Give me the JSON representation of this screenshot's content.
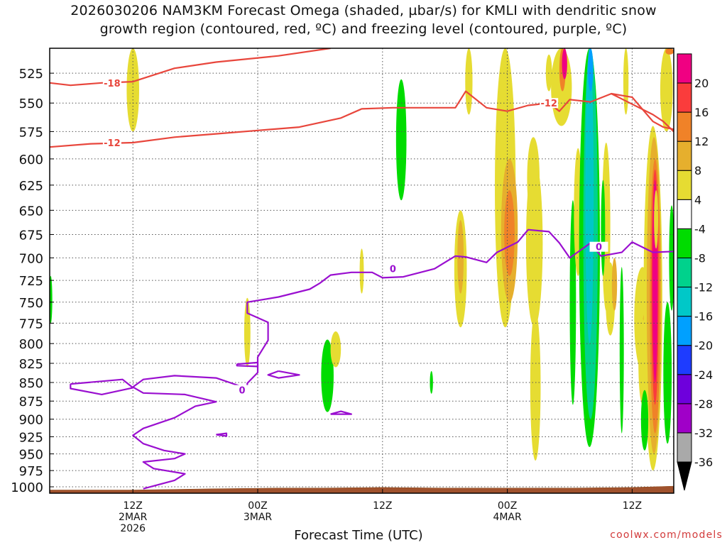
{
  "chart_data": {
    "type": "heatmap",
    "title_line1": "2026030206 NAM3KM Forecast Omega (shaded, µbar/s) for KMLI with dendritic snow",
    "title_line2": "growth region (contoured, red, ºC) and freezing level (contoured, purple, ºC)",
    "xlabel": "Forecast Time (UTC)",
    "credit": "coolwx.com/models",
    "y_axis": {
      "unit": "hPa",
      "reversed": true,
      "ylim": [
        1010,
        505
      ],
      "ticks": [
        525,
        550,
        575,
        600,
        625,
        650,
        675,
        700,
        725,
        750,
        775,
        800,
        825,
        850,
        875,
        900,
        925,
        950,
        975,
        1000
      ]
    },
    "x_axis": {
      "xlim_hours": [
        -2,
        58
      ],
      "ticks": [
        {
          "hour": 6,
          "line1": "12Z",
          "line2": "2MAR",
          "line3": "2026"
        },
        {
          "hour": 18,
          "line1": "00Z",
          "line2": "3MAR",
          "line3": ""
        },
        {
          "hour": 30,
          "line1": "12Z",
          "line2": "",
          "line3": ""
        },
        {
          "hour": 42,
          "line1": "00Z",
          "line2": "4MAR",
          "line3": ""
        },
        {
          "hour": 54,
          "line1": "12Z",
          "line2": "",
          "line3": ""
        }
      ]
    },
    "grid": true,
    "colorbar": {
      "levels": [
        -36,
        -32,
        -28,
        -24,
        -20,
        -16,
        -12,
        -8,
        -4,
        4,
        8,
        12,
        16,
        20
      ],
      "labels": [
        "20",
        "16",
        "12",
        "8",
        "4",
        "-4",
        "-8",
        "-12",
        "-16",
        "-20",
        "-24",
        "-28",
        "-32",
        "-36"
      ],
      "colors": [
        "#a9a9a9",
        "#a000c8",
        "#6e00dc",
        "#1e3cff",
        "#00a0ff",
        "#00c8c8",
        "#00d28c",
        "#00dc00",
        "#ffffff",
        "#e6dc32",
        "#e6af2d",
        "#f08228",
        "#fa3c3c",
        "#f00082"
      ],
      "extend_low": "#000000",
      "extend_high": "#f00082"
    },
    "contour_labels": {
      "dgz_upper": "-18",
      "dgz_lower": "-12",
      "dgz_lower_right": "-12",
      "freeze": "0",
      "freeze_left": "0",
      "freeze_right": "0"
    },
    "dgz_upper_18": [
      [
        -2,
        533
      ],
      [
        0,
        535
      ],
      [
        3,
        533
      ],
      [
        6,
        532
      ],
      [
        10,
        521
      ],
      [
        14,
        516
      ],
      [
        20,
        511
      ],
      [
        25,
        505
      ]
    ],
    "dgz_lower_12": [
      [
        -2,
        589
      ],
      [
        2,
        586
      ],
      [
        6,
        585
      ],
      [
        10,
        580
      ],
      [
        14,
        577
      ],
      [
        18,
        574
      ],
      [
        22,
        571
      ],
      [
        26,
        563
      ],
      [
        28,
        555
      ],
      [
        31,
        554
      ],
      [
        35,
        554
      ],
      [
        37,
        554
      ],
      [
        38,
        540
      ],
      [
        40,
        554
      ],
      [
        42,
        557
      ],
      [
        44,
        552
      ],
      [
        46,
        550
      ],
      [
        47,
        557
      ],
      [
        48,
        547
      ],
      [
        50,
        549
      ],
      [
        52,
        542
      ],
      [
        54,
        545
      ],
      [
        56,
        566
      ],
      [
        57,
        571
      ],
      [
        58,
        573
      ]
    ],
    "dgz_upper_right_12": [
      [
        52,
        542
      ],
      [
        56,
        560
      ],
      [
        57,
        566
      ],
      [
        58,
        575
      ]
    ],
    "freeze_main": [
      [
        7,
        1003
      ],
      [
        10,
        990
      ],
      [
        11,
        980
      ],
      [
        8,
        972
      ],
      [
        7,
        962
      ],
      [
        10,
        957
      ],
      [
        11,
        950
      ],
      [
        9,
        945
      ],
      [
        7,
        935
      ],
      [
        6,
        923
      ],
      [
        7,
        913
      ],
      [
        10,
        898
      ],
      [
        12,
        882
      ],
      [
        14,
        876
      ],
      [
        11,
        866
      ],
      [
        7,
        864
      ],
      [
        6,
        856
      ],
      [
        7,
        846
      ],
      [
        10,
        841
      ],
      [
        14,
        844
      ],
      [
        17,
        858
      ],
      [
        17,
        851
      ],
      [
        18,
        837
      ],
      [
        18,
        817
      ],
      [
        19,
        796
      ],
      [
        19,
        774
      ],
      [
        17,
        763
      ],
      [
        17,
        750
      ],
      [
        20,
        744
      ],
      [
        23,
        735
      ],
      [
        24,
        728
      ],
      [
        25,
        719
      ],
      [
        27,
        716
      ],
      [
        29,
        716
      ],
      [
        30,
        722
      ],
      [
        32,
        721
      ],
      [
        35,
        712
      ],
      [
        37,
        698
      ],
      [
        38,
        699
      ],
      [
        40,
        705
      ],
      [
        41,
        694
      ],
      [
        43,
        683
      ],
      [
        44,
        670
      ],
      [
        46,
        672
      ],
      [
        47,
        684
      ],
      [
        48,
        700
      ],
      [
        50,
        684
      ],
      [
        51,
        698
      ],
      [
        53,
        694
      ],
      [
        54,
        683
      ],
      [
        56,
        694
      ],
      [
        58,
        693
      ]
    ],
    "freeze_blob1": [
      [
        0,
        852
      ],
      [
        5,
        846
      ],
      [
        6,
        857
      ],
      [
        3,
        866
      ],
      [
        0,
        858
      ],
      [
        0,
        852
      ]
    ],
    "freeze_blob2": [
      [
        16,
        826
      ],
      [
        18,
        824
      ],
      [
        18,
        829
      ],
      [
        16,
        828
      ],
      [
        16,
        826
      ]
    ],
    "freeze_blob3": [
      [
        14,
        922
      ],
      [
        15,
        920
      ],
      [
        15,
        924
      ],
      [
        14,
        922
      ]
    ],
    "freeze_blob4": [
      [
        20,
        835
      ],
      [
        22,
        840
      ],
      [
        20,
        844
      ],
      [
        19,
        840
      ],
      [
        20,
        835
      ]
    ],
    "freeze_blob5": [
      [
        25,
        893
      ],
      [
        26,
        889
      ],
      [
        27,
        893
      ],
      [
        25,
        893
      ]
    ],
    "omega_blobs": [
      {
        "t": 6,
        "hw": 0.6,
        "p1": 505,
        "p2": 575,
        "v": 6
      },
      {
        "t": 17,
        "hw": 0.3,
        "p1": 745,
        "p2": 830,
        "v": 6
      },
      {
        "t": 24.7,
        "hw": 0.6,
        "p1": 795,
        "p2": 890,
        "v": -6
      },
      {
        "t": 25.5,
        "hw": 0.5,
        "p1": 785,
        "p2": 830,
        "v": 6
      },
      {
        "t": 28,
        "hw": 0.2,
        "p1": 690,
        "p2": 740,
        "v": 6
      },
      {
        "t": 31.8,
        "hw": 0.5,
        "p1": 530,
        "p2": 640,
        "v": -6
      },
      {
        "t": 34.7,
        "hw": 0.15,
        "p1": 835,
        "p2": 865,
        "v": -6
      },
      {
        "t": 37.5,
        "hw": 0.6,
        "p1": 650,
        "p2": 780,
        "v": 6
      },
      {
        "t": 37.5,
        "hw": 0.3,
        "p1": 660,
        "p2": 740,
        "v": 10
      },
      {
        "t": 38.3,
        "hw": 0.35,
        "p1": 505,
        "p2": 560,
        "v": 5
      },
      {
        "t": 41.8,
        "hw": 1.0,
        "p1": 505,
        "p2": 780,
        "v": 6
      },
      {
        "t": 42.2,
        "hw": 0.8,
        "p1": 600,
        "p2": 750,
        "v": 9
      },
      {
        "t": 42.2,
        "hw": 0.5,
        "p1": 630,
        "p2": 720,
        "v": 13
      },
      {
        "t": 44.6,
        "hw": 0.8,
        "p1": 600,
        "p2": 780,
        "v": 6
      },
      {
        "t": 44.5,
        "hw": 0.6,
        "p1": 580,
        "p2": 660,
        "v": 5
      },
      {
        "t": 44.7,
        "hw": 0.5,
        "p1": 760,
        "p2": 960,
        "v": 6
      },
      {
        "t": 47.2,
        "hw": 1.0,
        "p1": 505,
        "p2": 570,
        "v": 6
      },
      {
        "t": 47.3,
        "hw": 0.3,
        "p1": 505,
        "p2": 540,
        "v": 15
      },
      {
        "t": 47.5,
        "hw": 0.25,
        "p1": 505,
        "p2": 530,
        "v": 22
      },
      {
        "t": 48.3,
        "hw": 0.3,
        "p1": 640,
        "p2": 880,
        "v": -6
      },
      {
        "t": 48.8,
        "hw": 0.4,
        "p1": 590,
        "p2": 720,
        "v": 6
      },
      {
        "t": 49.9,
        "hw": 1.0,
        "p1": 505,
        "p2": 940,
        "v": -6
      },
      {
        "t": 50.0,
        "hw": 0.7,
        "p1": 505,
        "p2": 900,
        "v": -10
      },
      {
        "t": 49.9,
        "hw": 0.4,
        "p1": 505,
        "p2": 800,
        "v": -15
      },
      {
        "t": 50.0,
        "hw": 0.25,
        "p1": 505,
        "p2": 540,
        "v": -18
      },
      {
        "t": 51.5,
        "hw": 0.4,
        "p1": 585,
        "p2": 760,
        "v": 6
      },
      {
        "t": 51.9,
        "hw": 0.45,
        "p1": 705,
        "p2": 790,
        "v": 6
      },
      {
        "t": 52.3,
        "hw": 0.25,
        "p1": 700,
        "p2": 760,
        "v": 10
      },
      {
        "t": 51.2,
        "hw": 0.2,
        "p1": 620,
        "p2": 720,
        "v": -6
      },
      {
        "t": 53.0,
        "hw": 0.2,
        "p1": 710,
        "p2": 920,
        "v": -6
      },
      {
        "t": 53.4,
        "hw": 0.25,
        "p1": 505,
        "p2": 560,
        "v": 6
      },
      {
        "t": 55.0,
        "hw": 0.8,
        "p1": 710,
        "p2": 835,
        "v": 6
      },
      {
        "t": 55.3,
        "hw": 0.3,
        "p1": 760,
        "p2": 800,
        "v": 9
      },
      {
        "t": 55.0,
        "hw": 0.4,
        "p1": 770,
        "p2": 880,
        "v": 5
      },
      {
        "t": 56.0,
        "hw": 0.9,
        "p1": 570,
        "p2": 975,
        "v": 6
      },
      {
        "t": 56.1,
        "hw": 0.7,
        "p1": 580,
        "p2": 950,
        "v": 9
      },
      {
        "t": 56.2,
        "hw": 0.5,
        "p1": 600,
        "p2": 920,
        "v": 13
      },
      {
        "t": 56.2,
        "hw": 0.35,
        "p1": 610,
        "p2": 880,
        "v": 17
      },
      {
        "t": 56.2,
        "hw": 0.25,
        "p1": 620,
        "p2": 850,
        "v": 22
      },
      {
        "t": 55.2,
        "hw": 0.35,
        "p1": 860,
        "p2": 945,
        "v": -6
      },
      {
        "t": 57.3,
        "hw": 0.6,
        "p1": 505,
        "p2": 575,
        "v": 6
      },
      {
        "t": 57.6,
        "hw": 0.4,
        "p1": 505,
        "p2": 510,
        "v": 12
      },
      {
        "t": 57.8,
        "hw": 0.25,
        "p1": 645,
        "p2": 760,
        "v": -6
      },
      {
        "t": 57.4,
        "hw": 0.4,
        "p1": 750,
        "p2": 935,
        "v": -6
      },
      {
        "t": 56.3,
        "hw": 0.2,
        "p1": 630,
        "p2": 690,
        "v": 6
      },
      {
        "t": -1.9,
        "hw": 0.15,
        "p1": 720,
        "p2": 775,
        "v": -6
      },
      {
        "t": 46.0,
        "hw": 0.3,
        "p1": 510,
        "p2": 540,
        "v": 6
      }
    ],
    "terrain_top": [
      [
        -2,
        1005
      ],
      [
        6,
        1005
      ],
      [
        10,
        1004
      ],
      [
        14,
        1003
      ],
      [
        20,
        1002
      ],
      [
        24,
        1002
      ],
      [
        30,
        1001
      ],
      [
        36,
        1002
      ],
      [
        42,
        1002
      ],
      [
        48,
        1002
      ],
      [
        54,
        1001
      ],
      [
        58,
        999
      ]
    ]
  }
}
